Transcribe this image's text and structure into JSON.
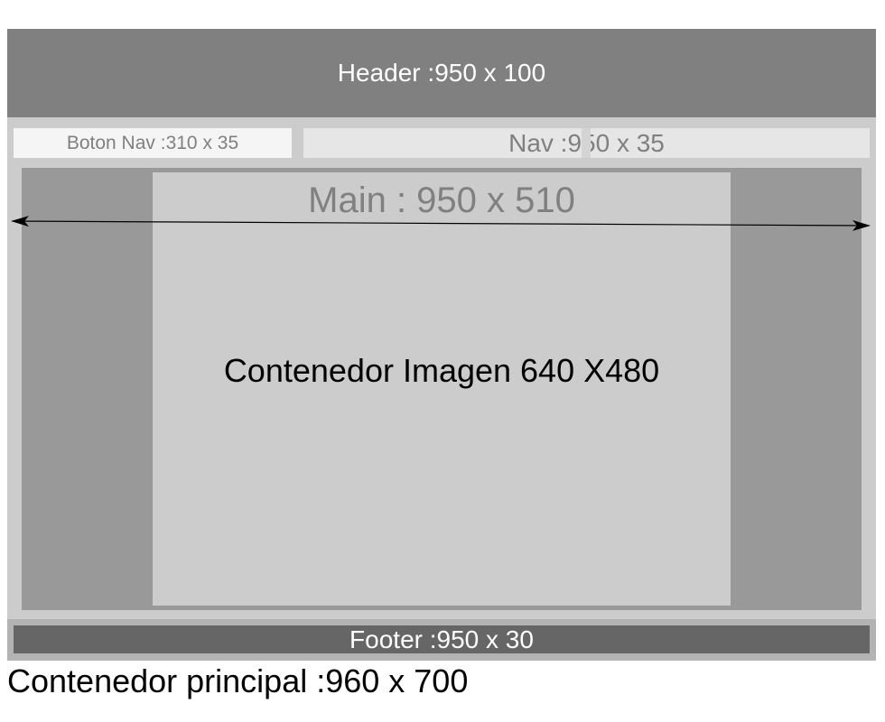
{
  "header": {
    "label": "Header :950 x 100"
  },
  "nav": {
    "button_label": "Boton Nav :310 x 35",
    "label": "Nav :950 x 35"
  },
  "main": {
    "label": "Main : 950 x 510",
    "image_container_label": "Contenedor Imagen 640 X480"
  },
  "footer": {
    "label": "Footer :950 x 30"
  },
  "container": {
    "label": "Contenedor principal :960 x 700"
  },
  "colors": {
    "header": "#808080",
    "main": "#999999",
    "image_container": "#cccccc",
    "footer": "#666666"
  }
}
